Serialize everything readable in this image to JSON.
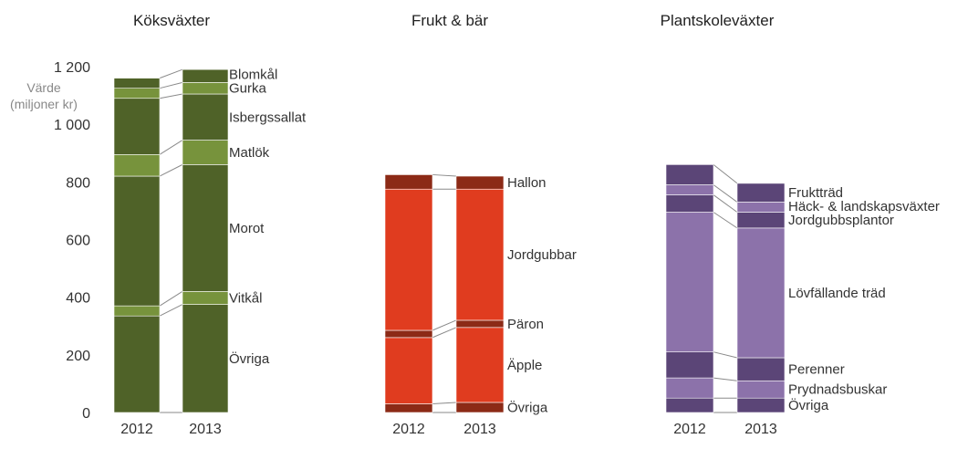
{
  "chart_data": {
    "type": "bar",
    "stacked": true,
    "ylabel": [
      "Värde",
      "(miljoner kr)"
    ],
    "ylim": [
      0,
      1200
    ],
    "yticks": [
      0,
      200,
      400,
      600,
      800,
      1000,
      1200
    ],
    "ytick_labels": [
      "0",
      "200",
      "400",
      "600",
      "800",
      "1 000",
      "1 200"
    ],
    "categories": [
      "2012",
      "2013"
    ],
    "grid": false,
    "panels": [
      {
        "title": "Köksväxter",
        "colors": {
          "dark": "#4f6228",
          "light": "#77933c"
        },
        "series": [
          {
            "name": "Övriga",
            "values": [
              335,
              375
            ],
            "tone": "dark"
          },
          {
            "name": "Vitkål",
            "values": [
              35,
              45
            ],
            "tone": "light"
          },
          {
            "name": "Morot",
            "values": [
              450,
              440
            ],
            "tone": "dark"
          },
          {
            "name": "Matlök",
            "values": [
              75,
              85
            ],
            "tone": "light"
          },
          {
            "name": "Isbergssallat",
            "values": [
              195,
              160
            ],
            "tone": "dark"
          },
          {
            "name": "Gurka",
            "values": [
              35,
              40
            ],
            "tone": "light"
          },
          {
            "name": "Blomkål",
            "values": [
              35,
              45
            ],
            "tone": "dark"
          }
        ]
      },
      {
        "title": "Frukt & bär",
        "colors": {
          "dark": "#8c2a16",
          "light": "#e03c1f"
        },
        "series": [
          {
            "name": "Övriga",
            "values": [
              30,
              35
            ],
            "tone": "dark"
          },
          {
            "name": "Äpple",
            "values": [
              230,
              260
            ],
            "tone": "light"
          },
          {
            "name": "Päron",
            "values": [
              25,
              25
            ],
            "tone": "dark"
          },
          {
            "name": "Jordgubbar",
            "values": [
              490,
              455
            ],
            "tone": "light"
          },
          {
            "name": "Hallon",
            "values": [
              50,
              45
            ],
            "tone": "dark"
          }
        ]
      },
      {
        "title": "Plantskoleväxter",
        "colors": {
          "dark": "#5b4577",
          "light": "#8c72aa"
        },
        "series": [
          {
            "name": "Övriga",
            "values": [
              50,
              50
            ],
            "tone": "dark"
          },
          {
            "name": "Prydnadsbuskar",
            "values": [
              70,
              60
            ],
            "tone": "light"
          },
          {
            "name": "Perenner",
            "values": [
              90,
              80
            ],
            "tone": "dark"
          },
          {
            "name": "Lövfällande träd",
            "values": [
              485,
              450
            ],
            "tone": "light"
          },
          {
            "name": "Jordgubbsplantor",
            "values": [
              60,
              55
            ],
            "tone": "dark"
          },
          {
            "name": "Häck- & landskapsväxter",
            "values": [
              35,
              35
            ],
            "tone": "light"
          },
          {
            "name": "Fruktträd",
            "values": [
              70,
              65
            ],
            "tone": "dark"
          }
        ]
      }
    ]
  }
}
